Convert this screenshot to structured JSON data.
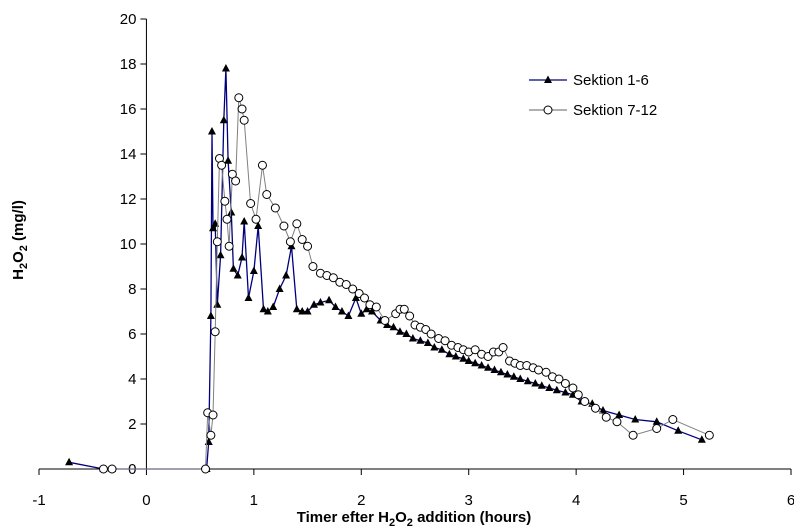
{
  "chart_data": {
    "type": "line",
    "title": "",
    "xlabel": "Timer efter H2O2 addition (hours)",
    "ylabel": "H2O2 (mg/l)",
    "xlim": [
      -1,
      6
    ],
    "ylim": [
      0,
      20
    ],
    "x_ticks": [
      -1,
      0,
      1,
      2,
      3,
      4,
      5,
      6
    ],
    "y_ticks": [
      0,
      2,
      4,
      6,
      8,
      10,
      12,
      14,
      16,
      18,
      20
    ],
    "grid": false,
    "legend_position": "top-right",
    "series": [
      {
        "name": "Sektion 1-6",
        "color": "#00007f",
        "marker": "filled-triangle",
        "x": [
          -0.72,
          -0.4,
          -0.32,
          0.56,
          0.58,
          0.6,
          0.61,
          0.62,
          0.64,
          0.66,
          0.69,
          0.72,
          0.74,
          0.76,
          0.79,
          0.81,
          0.85,
          0.89,
          0.91,
          0.95,
          1.0,
          1.04,
          1.09,
          1.13,
          1.18,
          1.24,
          1.3,
          1.35,
          1.4,
          1.45,
          1.5,
          1.56,
          1.62,
          1.7,
          1.76,
          1.82,
          1.88,
          1.95,
          2.0,
          2.05,
          2.1,
          2.18,
          2.24,
          2.3,
          2.36,
          2.42,
          2.48,
          2.55,
          2.62,
          2.68,
          2.75,
          2.82,
          2.88,
          2.95,
          3.0,
          3.06,
          3.12,
          3.18,
          3.24,
          3.3,
          3.36,
          3.42,
          3.48,
          3.55,
          3.62,
          3.68,
          3.75,
          3.82,
          3.9,
          3.97,
          4.05,
          4.15,
          4.25,
          4.4,
          4.55,
          4.75,
          4.95,
          5.17
        ],
        "y": [
          0.3,
          0.0,
          0.0,
          0.0,
          1.2,
          6.8,
          15.0,
          10.7,
          10.9,
          7.3,
          9.5,
          15.5,
          17.8,
          13.7,
          11.4,
          8.9,
          8.6,
          9.4,
          11.0,
          7.6,
          8.8,
          10.8,
          7.1,
          7.0,
          7.2,
          8.0,
          8.6,
          9.9,
          7.1,
          7.0,
          7.0,
          7.3,
          7.4,
          7.5,
          7.2,
          7.0,
          6.8,
          7.6,
          6.9,
          7.1,
          7.0,
          6.6,
          6.4,
          6.3,
          6.1,
          6.0,
          5.8,
          5.7,
          5.6,
          5.4,
          5.3,
          5.1,
          5.0,
          4.9,
          4.8,
          4.7,
          4.6,
          4.5,
          4.4,
          4.3,
          4.2,
          4.1,
          4.0,
          3.9,
          3.8,
          3.7,
          3.6,
          3.5,
          3.4,
          3.3,
          3.0,
          2.9,
          2.6,
          2.4,
          2.2,
          2.1,
          1.7,
          1.3
        ]
      },
      {
        "name": "Sektion 7-12",
        "color": "#808080",
        "marker": "open-circle",
        "x": [
          -0.4,
          -0.32,
          0.55,
          0.57,
          0.6,
          0.62,
          0.64,
          0.66,
          0.68,
          0.7,
          0.73,
          0.75,
          0.77,
          0.8,
          0.83,
          0.86,
          0.89,
          0.91,
          0.97,
          1.02,
          1.08,
          1.12,
          1.2,
          1.28,
          1.34,
          1.4,
          1.45,
          1.5,
          1.55,
          1.62,
          1.68,
          1.74,
          1.8,
          1.86,
          1.92,
          1.98,
          2.03,
          2.08,
          2.14,
          2.22,
          2.32,
          2.36,
          2.4,
          2.45,
          2.5,
          2.55,
          2.6,
          2.65,
          2.72,
          2.78,
          2.84,
          2.9,
          2.95,
          3.0,
          3.06,
          3.12,
          3.18,
          3.23,
          3.28,
          3.32,
          3.38,
          3.43,
          3.48,
          3.54,
          3.6,
          3.65,
          3.72,
          3.78,
          3.84,
          3.9,
          3.97,
          4.02,
          4.08,
          4.18,
          4.28,
          4.38,
          4.53,
          4.75,
          4.9,
          5.24
        ],
        "y": [
          0.0,
          0.0,
          0.0,
          2.5,
          1.5,
          2.4,
          6.1,
          10.1,
          13.8,
          13.5,
          11.9,
          11.1,
          9.9,
          13.1,
          12.8,
          16.5,
          16.0,
          15.5,
          11.8,
          11.1,
          13.5,
          12.2,
          11.6,
          10.8,
          10.1,
          10.9,
          10.2,
          9.9,
          9.0,
          8.7,
          8.6,
          8.5,
          8.3,
          8.2,
          8.0,
          7.8,
          7.6,
          7.3,
          7.2,
          6.6,
          6.9,
          7.1,
          7.1,
          6.8,
          6.4,
          6.3,
          6.2,
          6.0,
          5.8,
          5.7,
          5.5,
          5.4,
          5.3,
          5.2,
          5.3,
          5.1,
          5.0,
          5.2,
          5.2,
          5.4,
          4.8,
          4.7,
          4.6,
          4.6,
          4.5,
          4.4,
          4.3,
          4.1,
          4.0,
          3.8,
          3.6,
          3.3,
          3.0,
          2.7,
          2.3,
          2.1,
          1.5,
          1.8,
          2.2,
          1.5
        ]
      }
    ]
  }
}
